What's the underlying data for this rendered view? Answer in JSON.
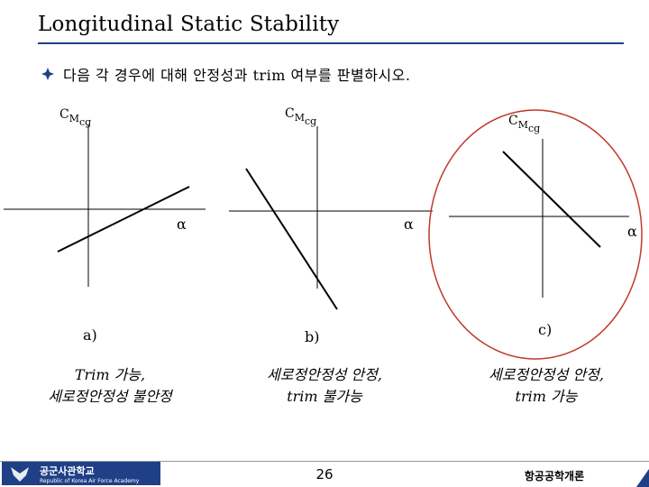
{
  "title": "Longitudinal Static Stability",
  "bullet_text": "다음 각 경우에 대해 안정성과 trim 여부를 판별하시오.",
  "axis_symbols": {
    "cm": "C",
    "cm_sub": "M",
    "cm_subsub": "cg",
    "alpha": "α"
  },
  "cases": [
    {
      "label": "a)",
      "verdict_line1": "Trim 가능,",
      "verdict_line2": "세로정안정성 불안정",
      "circled": false
    },
    {
      "label": "b)",
      "verdict_line1": "세로정안정성 안정,",
      "verdict_line2": "trim 불가능",
      "circled": false
    },
    {
      "label": "c)",
      "verdict_line1": "세로정안정성 안정,",
      "verdict_line2": "trim 가능",
      "circled": true
    }
  ],
  "footer": {
    "logo_text": "공군사관학교",
    "logo_subtext": "Republic of Korea Air Force Academy",
    "page_number": "26",
    "course": "항공공학개론"
  },
  "colors": {
    "title_rule": "#1f3f87",
    "circle": "#c0392b",
    "bullet": "#1f3f87",
    "logo_bg": "#1f3f87"
  }
}
